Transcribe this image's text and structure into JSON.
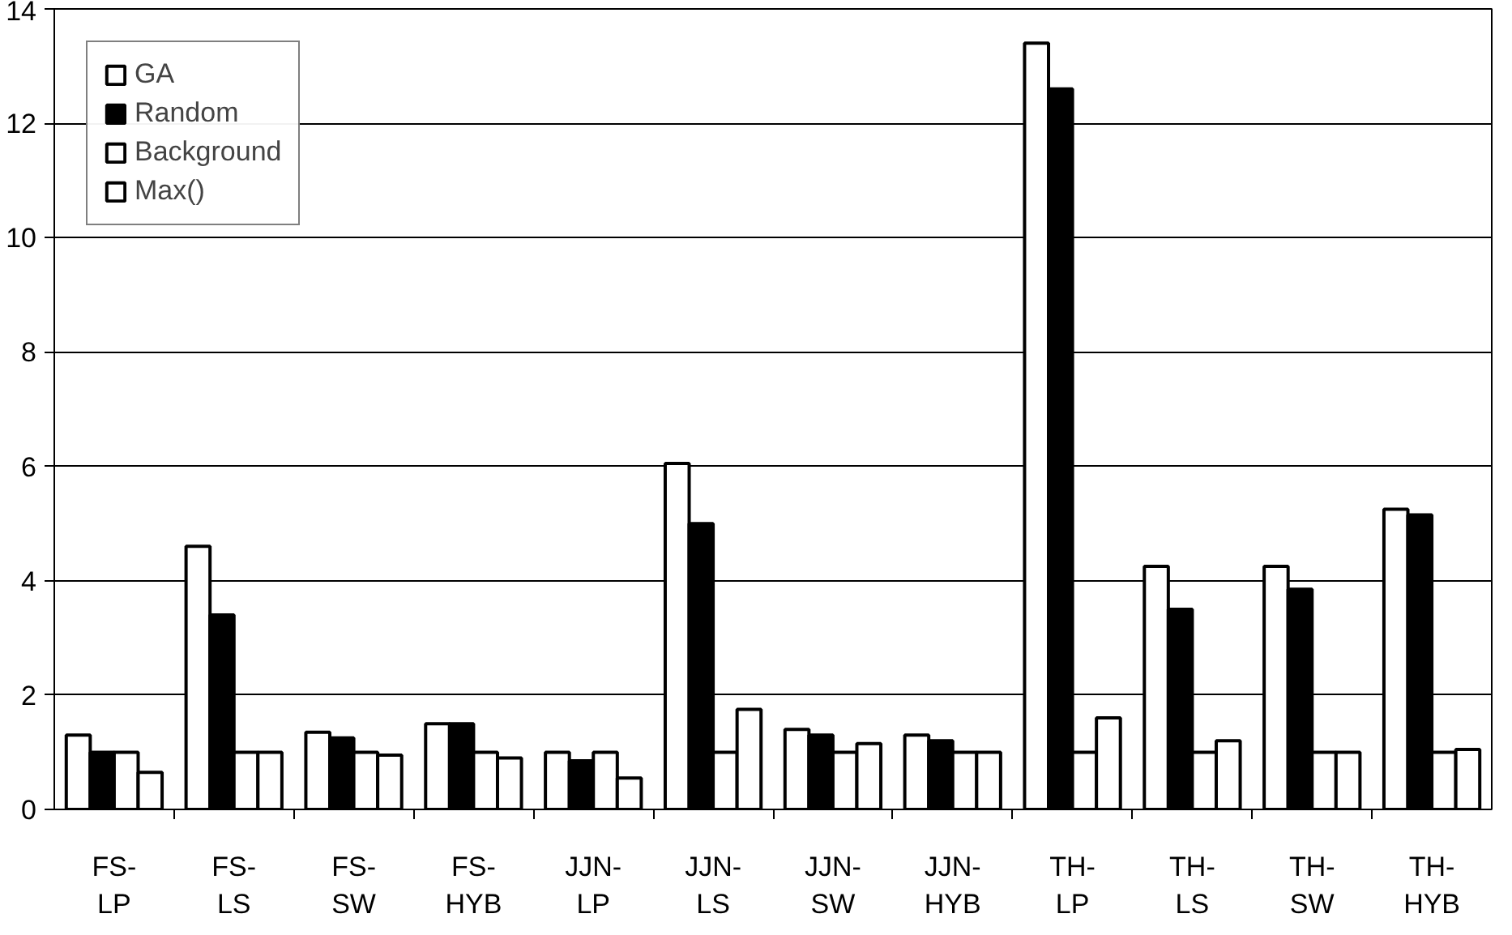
{
  "chart_data": {
    "type": "bar",
    "categories": [
      "FS-LP",
      "FS-LS",
      "FS-SW",
      "FS-HYB",
      "JJN-LP",
      "JJN-LS",
      "JJN-SW",
      "JJN-HYB",
      "TH-LP",
      "TH-LS",
      "TH-SW",
      "TH-HYB"
    ],
    "series": [
      {
        "name": "GA",
        "color": "#ffffff",
        "values": [
          1.3,
          4.6,
          1.35,
          1.5,
          1.0,
          6.05,
          1.4,
          1.3,
          13.4,
          4.25,
          4.25,
          5.25
        ]
      },
      {
        "name": "Random",
        "color": "#000000",
        "values": [
          1.0,
          3.4,
          1.25,
          1.5,
          0.85,
          5.0,
          1.3,
          1.2,
          12.6,
          3.5,
          3.85,
          5.15
        ]
      },
      {
        "name": "Background",
        "color": "#ffffff",
        "values": [
          1.0,
          1.0,
          1.0,
          1.0,
          1.0,
          1.0,
          1.0,
          1.0,
          1.0,
          1.0,
          1.0,
          1.0
        ]
      },
      {
        "name": "Max()",
        "color": "#ffffff",
        "values": [
          0.65,
          1.0,
          0.95,
          0.9,
          0.55,
          1.75,
          1.15,
          1.0,
          1.6,
          1.2,
          1.0,
          1.05
        ]
      }
    ],
    "ylim": [
      0,
      14
    ],
    "yticks": [
      0,
      2,
      4,
      6,
      8,
      10,
      12,
      14
    ],
    "grid": "y",
    "legend": "top left"
  }
}
